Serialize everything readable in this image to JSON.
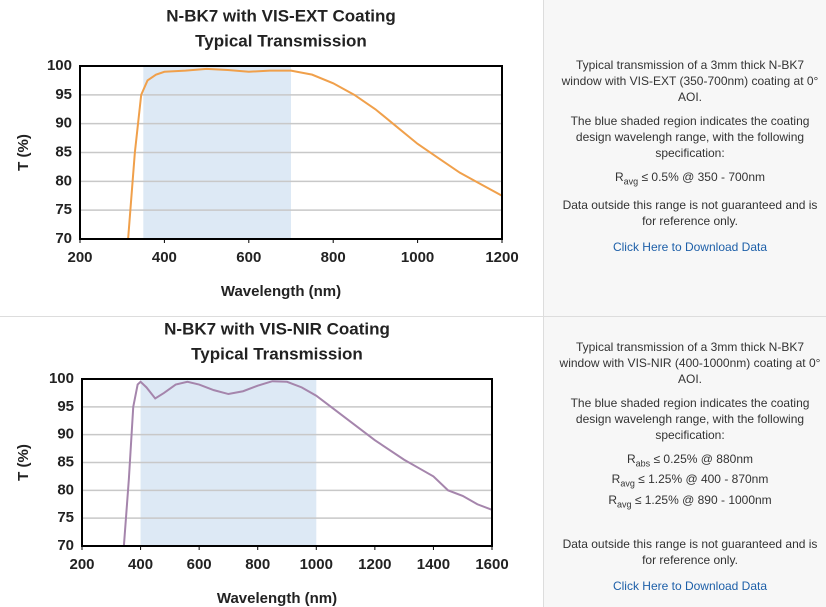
{
  "chart_data": [
    {
      "type": "line",
      "title": "N-BK7 with VIS-EXT Coating",
      "subtitle": "Typical Transmission",
      "x_label": "Wavelength (nm)",
      "y_label": "T (%)",
      "x": [
        314,
        330,
        345,
        360,
        380,
        400,
        450,
        500,
        550,
        600,
        650,
        700,
        750,
        800,
        850,
        900,
        950,
        1000,
        1050,
        1100,
        1150,
        1200
      ],
      "series": [
        {
          "color": "#f0a04b",
          "values": [
            70,
            85,
            95,
            97.5,
            98.5,
            99,
            99.2,
            99.5,
            99.3,
            99,
            99.2,
            99.2,
            98.5,
            97,
            95,
            92.5,
            89.5,
            86.5,
            84,
            81.5,
            79.5,
            77.5
          ]
        }
      ],
      "xlim": [
        200,
        1200
      ],
      "xticks": [
        200,
        400,
        600,
        800,
        1000,
        1200
      ],
      "ylim": [
        70,
        100
      ],
      "yticks": [
        70,
        75,
        80,
        85,
        90,
        95,
        100
      ],
      "grid": true,
      "highlight_range": [
        350,
        700
      ],
      "highlight_color": "#dde9f5"
    },
    {
      "type": "line",
      "title": "N-BK7 with VIS-NIR Coating",
      "subtitle": "Typical Transmission",
      "x_label": "Wavelength (nm)",
      "y_label": "T (%)",
      "x": [
        343,
        360,
        375,
        390,
        400,
        420,
        450,
        480,
        520,
        560,
        600,
        650,
        700,
        750,
        800,
        850,
        900,
        950,
        1000,
        1050,
        1100,
        1200,
        1300,
        1350,
        1400,
        1450,
        1500,
        1550,
        1600
      ],
      "series": [
        {
          "color": "#a585ac",
          "values": [
            70,
            82,
            95,
            99,
            99.5,
            98.5,
            96.5,
            97.5,
            99,
            99.5,
            99,
            98,
            97.3,
            97.8,
            98.8,
            99.6,
            99.5,
            98.5,
            97,
            95,
            93,
            89,
            85.5,
            84,
            82.5,
            80,
            79,
            77.5,
            76.5
          ]
        }
      ],
      "xlim": [
        200,
        1600
      ],
      "xticks": [
        200,
        400,
        600,
        800,
        1000,
        1200,
        1400,
        1600
      ],
      "ylim": [
        70,
        100
      ],
      "yticks": [
        70,
        75,
        80,
        85,
        90,
        95,
        100
      ],
      "grid": true,
      "highlight_range": [
        400,
        1000
      ],
      "highlight_color": "#dde9f5"
    }
  ],
  "panels": [
    {
      "paragraphs": [
        "Typical transmission of a 3mm thick N-BK7 window with VIS-EXT (350-700nm) coating at 0° AOI.",
        "The blue shaded region indicates the coating design wavelengh range, with the following specification:"
      ],
      "spec": [
        {
          "symbol": "R",
          "sub": "avg",
          "text": " ≤ 0.5% @ 350 - 700nm"
        }
      ],
      "note": "Data outside this range is not guaranteed and is for reference only.",
      "link": "Click Here to Download Data"
    },
    {
      "paragraphs": [
        "Typical transmission of a 3mm thick N-BK7 window with VIS-NIR (400-1000nm) coating at 0° AOI.",
        "The blue shaded region indicates the coating design wavelengh range, with the following specification:"
      ],
      "spec": [
        {
          "symbol": "R",
          "sub": "abs",
          "text": " ≤ 0.25% @ 880nm"
        },
        {
          "symbol": "R",
          "sub": "avg",
          "text": " ≤ 1.25% @ 400 - 870nm"
        },
        {
          "symbol": "R",
          "sub": "avg",
          "text": " ≤ 1.25% @ 890 - 1000nm"
        }
      ],
      "note": "Data outside this range is not guaranteed and is for reference only.",
      "link": "Click Here to Download Data"
    }
  ]
}
